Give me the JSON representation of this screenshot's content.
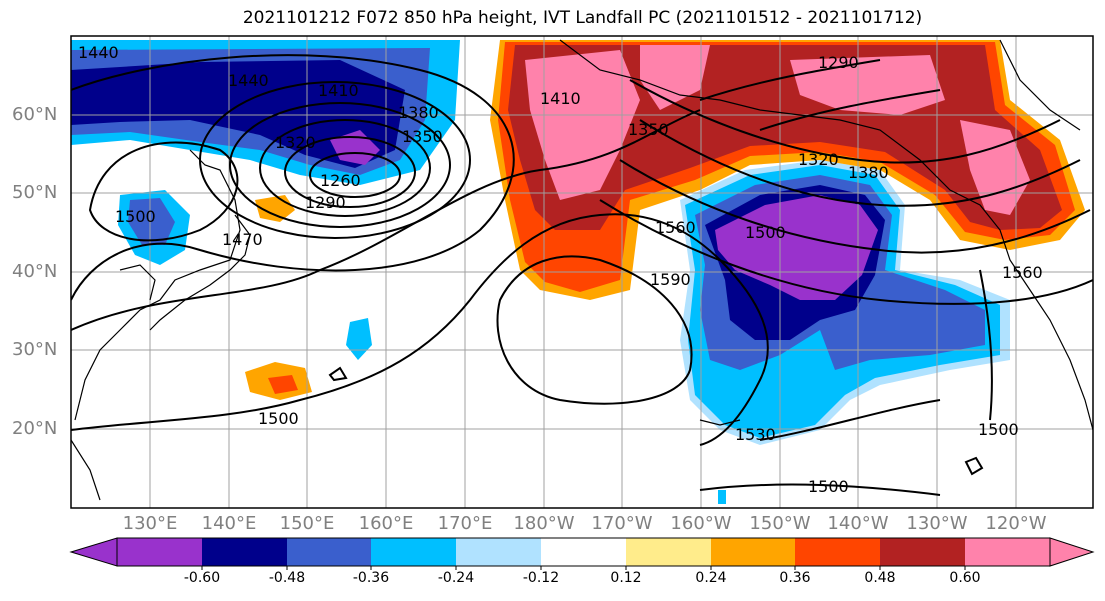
{
  "title": "2021101212 F072 850 hPa height, IVT Landfall PC (2021101512 - 2021101712)",
  "lat_labels": [
    "60°N",
    "50°N",
    "40°N",
    "30°N",
    "20°N"
  ],
  "lon_labels": [
    "130°E",
    "140°E",
    "150°E",
    "160°E",
    "170°E",
    "180°W",
    "170°W",
    "160°W",
    "150°W",
    "140°W",
    "130°W",
    "120°W"
  ],
  "contour_labels": [
    "1440",
    "1410",
    "1380",
    "1350",
    "1320",
    "1290",
    "1260",
    "1440",
    "1470",
    "1500",
    "1530",
    "1560",
    "1590",
    "1500",
    "1500",
    "1560",
    "1500",
    "1410",
    "1350",
    "1290",
    "1320",
    "1380",
    "1500"
  ],
  "colorbar": {
    "ticks": [
      "-0.60",
      "-0.48",
      "-0.36",
      "-0.24",
      "-0.12",
      "0.12",
      "0.24",
      "0.36",
      "0.48",
      "0.60"
    ],
    "colors": [
      "#9932cc",
      "#00008b",
      "#3a5fcd",
      "#00bfff",
      "#b0e2ff",
      "#ffffff",
      "#ffec8b",
      "#ffa500",
      "#ff4500",
      "#b22222",
      "#ff82ab"
    ]
  },
  "colors": {
    "frame": "#000000",
    "grid": "#a0a0a0",
    "contour": "#000000"
  }
}
